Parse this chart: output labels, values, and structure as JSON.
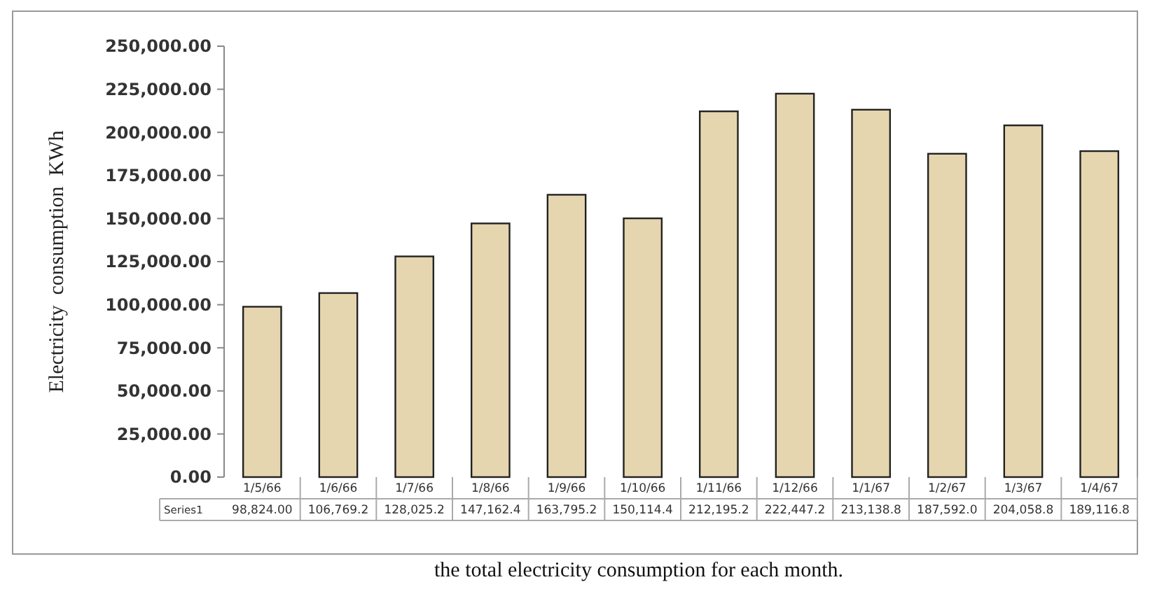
{
  "chart_data": {
    "type": "bar",
    "title": "the total electricity consumption for each month.",
    "ylabel": "Electricity  consumption  KWh",
    "categories": [
      "1/5/66",
      "1/6/66",
      "1/7/66",
      "1/8/66",
      "1/9/66",
      "1/10/66",
      "1/11/66",
      "1/12/66",
      "1/1/67",
      "1/2/67",
      "1/3/67",
      "1/4/67"
    ],
    "series": [
      {
        "name": "Series1",
        "color": "#e6d6b0",
        "values": [
          98824.0,
          106769.2,
          128025.2,
          147162.4,
          163795.2,
          150114.4,
          212195.2,
          222447.2,
          213138.8,
          187592.0,
          204058.8,
          189116.8
        ],
        "value_labels": [
          "98,824.00",
          "106,769.2",
          "128,025.2",
          "147,162.4",
          "163,795.2",
          "150,114.4",
          "212,195.2",
          "222,447.2",
          "213,138.8",
          "187,592.0",
          "204,058.8",
          "189,116.8"
        ]
      }
    ],
    "ylim": [
      0,
      250000
    ],
    "yticks": [
      {
        "value": 0,
        "label": "0.00"
      },
      {
        "value": 25000,
        "label": "25,000.00"
      },
      {
        "value": 50000,
        "label": "50,000.00"
      },
      {
        "value": 75000,
        "label": "75,000.00"
      },
      {
        "value": 100000,
        "label": "100,000.00"
      },
      {
        "value": 125000,
        "label": "125,000.00"
      },
      {
        "value": 150000,
        "label": "150,000.00"
      },
      {
        "value": 175000,
        "label": "175,000.00"
      },
      {
        "value": 200000,
        "label": "200,000.00"
      },
      {
        "value": 225000,
        "label": "225,000.00"
      },
      {
        "value": 250000,
        "label": "250,000.00"
      }
    ],
    "grid": false,
    "legend": "bottom left",
    "data_labels": true
  }
}
